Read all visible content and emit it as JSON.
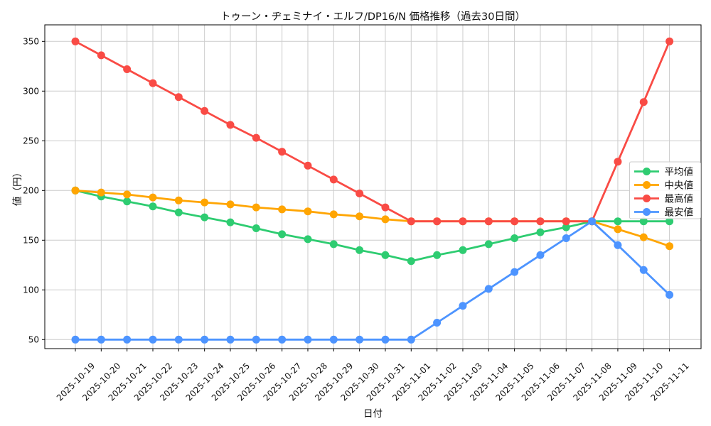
{
  "chart_data": {
    "type": "line",
    "title": "トゥーン・ヂェミナイ・エルフ/DP16/N 価格推移（過去30日間）",
    "xlabel": "日付",
    "ylabel": "値（円）",
    "x": [
      "2025-10-19",
      "2025-10-20",
      "2025-10-21",
      "2025-10-22",
      "2025-10-23",
      "2025-10-24",
      "2025-10-25",
      "2025-10-26",
      "2025-10-27",
      "2025-10-28",
      "2025-10-29",
      "2025-10-30",
      "2025-10-31",
      "2025-11-01",
      "2025-11-02",
      "2025-11-03",
      "2025-11-04",
      "2025-11-05",
      "2025-11-06",
      "2025-11-07",
      "2025-11-08",
      "2025-11-09",
      "2025-11-10",
      "2025-11-11"
    ],
    "series": [
      {
        "key": "avg",
        "name": "平均値",
        "color": "#2ECC71",
        "values": [
          200,
          194,
          189,
          184,
          178,
          173,
          168,
          162,
          156,
          151,
          146,
          140,
          135,
          129,
          135,
          140,
          146,
          152,
          158,
          163,
          169,
          169,
          169,
          169
        ]
      },
      {
        "key": "median",
        "name": "中央値",
        "color": "#FFA502",
        "values": [
          200,
          198,
          196,
          193,
          190,
          188,
          186,
          183,
          181,
          179,
          176,
          174,
          171,
          169,
          169,
          169,
          169,
          169,
          169,
          169,
          169,
          161,
          153,
          144
        ]
      },
      {
        "key": "max",
        "name": "最高値",
        "color": "#F94B45",
        "values": [
          350,
          336,
          322,
          308,
          294,
          280,
          266,
          253,
          239,
          225,
          211,
          197,
          183,
          169,
          169,
          169,
          169,
          169,
          169,
          169,
          169,
          229,
          289,
          350
        ]
      },
      {
        "key": "min",
        "name": "最安値",
        "color": "#4D94FF",
        "values": [
          50,
          50,
          50,
          50,
          50,
          50,
          50,
          50,
          50,
          50,
          50,
          50,
          50,
          50,
          67,
          84,
          101,
          118,
          135,
          152,
          169,
          145,
          120,
          95
        ]
      }
    ],
    "yticks": [
      50,
      100,
      150,
      200,
      250,
      300,
      350
    ],
    "ylim": [
      41,
      367
    ],
    "grid": true,
    "grid_color": "#cccccc",
    "legend_position": "center-right",
    "marker": "circle"
  }
}
